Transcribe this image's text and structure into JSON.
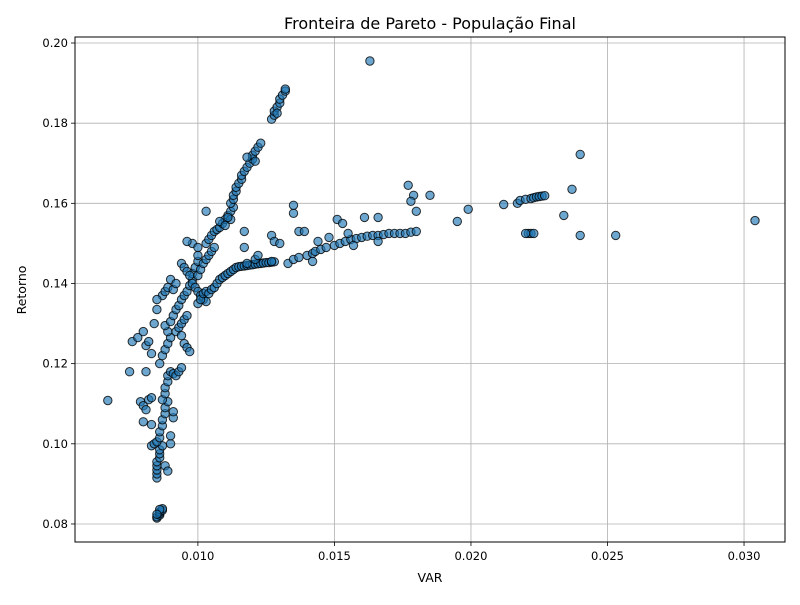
{
  "chart_data": {
    "type": "scatter",
    "title": "Fronteira de Pareto - População Final",
    "xlabel": "VAR",
    "ylabel": "Retorno",
    "xlim": [
      0.0055,
      0.0315
    ],
    "ylim": [
      0.0755,
      0.2015
    ],
    "xticks": [
      0.01,
      0.015,
      0.02,
      0.025,
      0.03
    ],
    "xtick_labels": [
      "0.010",
      "0.015",
      "0.020",
      "0.025",
      "0.030"
    ],
    "yticks": [
      0.08,
      0.1,
      0.12,
      0.14,
      0.16,
      0.18,
      0.2
    ],
    "ytick_labels": [
      "0.08",
      "0.10",
      "0.12",
      "0.14",
      "0.16",
      "0.18",
      "0.20"
    ],
    "grid": true,
    "marker_color": "#1f77b4",
    "marker_edge_color": "#000000",
    "marker_alpha": 0.65,
    "points": [
      [
        0.0085,
        0.0815
      ],
      [
        0.0085,
        0.0818
      ],
      [
        0.0086,
        0.0822
      ],
      [
        0.0086,
        0.0826
      ],
      [
        0.0086,
        0.083
      ],
      [
        0.0087,
        0.0834
      ],
      [
        0.0087,
        0.0838
      ],
      [
        0.0086,
        0.0836
      ],
      [
        0.0085,
        0.0824
      ],
      [
        0.0085,
        0.0915
      ],
      [
        0.0085,
        0.0925
      ],
      [
        0.0085,
        0.0935
      ],
      [
        0.0085,
        0.0945
      ],
      [
        0.0085,
        0.0955
      ],
      [
        0.0086,
        0.0965
      ],
      [
        0.0086,
        0.0975
      ],
      [
        0.0086,
        0.0985
      ],
      [
        0.0087,
        0.0995
      ],
      [
        0.0083,
        0.0995
      ],
      [
        0.0084,
        0.1
      ],
      [
        0.0085,
        0.1005
      ],
      [
        0.0086,
        0.1015
      ],
      [
        0.0086,
        0.103
      ],
      [
        0.0087,
        0.1045
      ],
      [
        0.0087,
        0.106
      ],
      [
        0.0088,
        0.1075
      ],
      [
        0.0088,
        0.109
      ],
      [
        0.0089,
        0.1105
      ],
      [
        0.0088,
        0.0945
      ],
      [
        0.0089,
        0.0932
      ],
      [
        0.009,
        0.1
      ],
      [
        0.009,
        0.102
      ],
      [
        0.0091,
        0.1065
      ],
      [
        0.0091,
        0.108
      ],
      [
        0.0087,
        0.111
      ],
      [
        0.0088,
        0.1125
      ],
      [
        0.0088,
        0.114
      ],
      [
        0.0089,
        0.1155
      ],
      [
        0.0089,
        0.117
      ],
      [
        0.009,
        0.118
      ],
      [
        0.0091,
        0.1175
      ],
      [
        0.0092,
        0.117
      ],
      [
        0.0093,
        0.118
      ],
      [
        0.0094,
        0.119
      ],
      [
        0.0086,
        0.12
      ],
      [
        0.0087,
        0.122
      ],
      [
        0.0088,
        0.1235
      ],
      [
        0.0089,
        0.125
      ],
      [
        0.009,
        0.1265
      ],
      [
        0.0089,
        0.128
      ],
      [
        0.0088,
        0.1295
      ],
      [
        0.009,
        0.1305
      ],
      [
        0.0091,
        0.132
      ],
      [
        0.0092,
        0.1335
      ],
      [
        0.0093,
        0.1345
      ],
      [
        0.0094,
        0.136
      ],
      [
        0.0095,
        0.137
      ],
      [
        0.0096,
        0.138
      ],
      [
        0.0097,
        0.1395
      ],
      [
        0.0098,
        0.141
      ],
      [
        0.0098,
        0.1425
      ],
      [
        0.0099,
        0.144
      ],
      [
        0.01,
        0.1455
      ],
      [
        0.01,
        0.147
      ],
      [
        0.0094,
        0.145
      ],
      [
        0.0095,
        0.144
      ],
      [
        0.0096,
        0.143
      ],
      [
        0.0097,
        0.142
      ],
      [
        0.0098,
        0.14
      ],
      [
        0.0099,
        0.139
      ],
      [
        0.01,
        0.138
      ],
      [
        0.0101,
        0.137
      ],
      [
        0.0102,
        0.136
      ],
      [
        0.0103,
        0.1355
      ],
      [
        0.0092,
        0.128
      ],
      [
        0.0093,
        0.129
      ],
      [
        0.0094,
        0.13
      ],
      [
        0.0095,
        0.131
      ],
      [
        0.0096,
        0.132
      ],
      [
        0.0094,
        0.127
      ],
      [
        0.0095,
        0.125
      ],
      [
        0.0096,
        0.124
      ],
      [
        0.0097,
        0.123
      ],
      [
        0.0087,
        0.137
      ],
      [
        0.0088,
        0.138
      ],
      [
        0.0089,
        0.139
      ],
      [
        0.009,
        0.141
      ],
      [
        0.0091,
        0.1385
      ],
      [
        0.0092,
        0.14
      ],
      [
        0.0076,
        0.1255
      ],
      [
        0.0078,
        0.1265
      ],
      [
        0.008,
        0.128
      ],
      [
        0.0081,
        0.1245
      ],
      [
        0.0082,
        0.1255
      ],
      [
        0.0083,
        0.1225
      ],
      [
        0.0084,
        0.13
      ],
      [
        0.0085,
        0.1335
      ],
      [
        0.0085,
        0.136
      ],
      [
        0.0075,
        0.118
      ],
      [
        0.0081,
        0.118
      ],
      [
        0.0082,
        0.111
      ],
      [
        0.0083,
        0.1115
      ],
      [
        0.0079,
        0.1105
      ],
      [
        0.008,
        0.1095
      ],
      [
        0.0081,
        0.1085
      ],
      [
        0.008,
        0.1055
      ],
      [
        0.0083,
        0.1048
      ],
      [
        0.0067,
        0.1108
      ],
      [
        0.0098,
        0.15
      ],
      [
        0.0096,
        0.1505
      ],
      [
        0.01,
        0.149
      ],
      [
        0.01,
        0.135
      ],
      [
        0.0101,
        0.136
      ],
      [
        0.0102,
        0.1375
      ],
      [
        0.0103,
        0.138
      ],
      [
        0.0104,
        0.1375
      ],
      [
        0.0105,
        0.1385
      ],
      [
        0.0106,
        0.139
      ],
      [
        0.0107,
        0.14
      ],
      [
        0.0108,
        0.141
      ],
      [
        0.0109,
        0.1415
      ],
      [
        0.011,
        0.142
      ],
      [
        0.0111,
        0.1425
      ],
      [
        0.0112,
        0.143
      ],
      [
        0.0113,
        0.1435
      ],
      [
        0.0114,
        0.144
      ],
      [
        0.0115,
        0.1442
      ],
      [
        0.0116,
        0.1443
      ],
      [
        0.0117,
        0.1444
      ],
      [
        0.0118,
        0.1445
      ],
      [
        0.0119,
        0.1446
      ],
      [
        0.012,
        0.1447
      ],
      [
        0.0121,
        0.1448
      ],
      [
        0.0122,
        0.1449
      ],
      [
        0.0123,
        0.145
      ],
      [
        0.0124,
        0.1451
      ],
      [
        0.0125,
        0.1452
      ],
      [
        0.0126,
        0.1452
      ],
      [
        0.0127,
        0.1453
      ],
      [
        0.0128,
        0.1454
      ],
      [
        0.01,
        0.142
      ],
      [
        0.0101,
        0.1435
      ],
      [
        0.0102,
        0.145
      ],
      [
        0.0103,
        0.146
      ],
      [
        0.0104,
        0.147
      ],
      [
        0.0105,
        0.148
      ],
      [
        0.0106,
        0.149
      ],
      [
        0.0103,
        0.15
      ],
      [
        0.0104,
        0.151
      ],
      [
        0.0105,
        0.152
      ],
      [
        0.0106,
        0.153
      ],
      [
        0.0107,
        0.1535
      ],
      [
        0.0108,
        0.154
      ],
      [
        0.0109,
        0.155
      ],
      [
        0.011,
        0.156
      ],
      [
        0.0111,
        0.157
      ],
      [
        0.0112,
        0.158
      ],
      [
        0.0113,
        0.159
      ],
      [
        0.0112,
        0.16
      ],
      [
        0.0113,
        0.161
      ],
      [
        0.0113,
        0.162
      ],
      [
        0.0114,
        0.163
      ],
      [
        0.0114,
        0.164
      ],
      [
        0.0115,
        0.165
      ],
      [
        0.0116,
        0.166
      ],
      [
        0.0116,
        0.167
      ],
      [
        0.0117,
        0.168
      ],
      [
        0.0118,
        0.169
      ],
      [
        0.0119,
        0.17
      ],
      [
        0.012,
        0.171
      ],
      [
        0.012,
        0.172
      ],
      [
        0.0121,
        0.173
      ],
      [
        0.0122,
        0.174
      ],
      [
        0.0123,
        0.175
      ],
      [
        0.0118,
        0.1715
      ],
      [
        0.0121,
        0.1705
      ],
      [
        0.0127,
        0.181
      ],
      [
        0.0128,
        0.182
      ],
      [
        0.0128,
        0.183
      ],
      [
        0.0129,
        0.184
      ],
      [
        0.013,
        0.185
      ],
      [
        0.013,
        0.186
      ],
      [
        0.0131,
        0.187
      ],
      [
        0.0132,
        0.188
      ],
      [
        0.0132,
        0.1885
      ],
      [
        0.0129,
        0.1825
      ],
      [
        0.0103,
        0.158
      ],
      [
        0.0108,
        0.1555
      ],
      [
        0.011,
        0.1545
      ],
      [
        0.0112,
        0.156
      ],
      [
        0.0111,
        0.1565
      ],
      [
        0.0117,
        0.153
      ],
      [
        0.0117,
        0.149
      ],
      [
        0.0118,
        0.145
      ],
      [
        0.0121,
        0.146
      ],
      [
        0.0122,
        0.147
      ],
      [
        0.0127,
        0.152
      ],
      [
        0.0128,
        0.1505
      ],
      [
        0.013,
        0.15
      ],
      [
        0.0127,
        0.1455
      ],
      [
        0.0133,
        0.145
      ],
      [
        0.0135,
        0.146
      ],
      [
        0.0137,
        0.1465
      ],
      [
        0.014,
        0.147
      ],
      [
        0.0142,
        0.1475
      ],
      [
        0.0143,
        0.148
      ],
      [
        0.0145,
        0.1485
      ],
      [
        0.0147,
        0.149
      ],
      [
        0.015,
        0.1495
      ],
      [
        0.0152,
        0.15
      ],
      [
        0.0154,
        0.1505
      ],
      [
        0.0156,
        0.151
      ],
      [
        0.0158,
        0.1512
      ],
      [
        0.016,
        0.1515
      ],
      [
        0.0162,
        0.1518
      ],
      [
        0.0164,
        0.152
      ],
      [
        0.0166,
        0.152
      ],
      [
        0.0168,
        0.1522
      ],
      [
        0.017,
        0.1525
      ],
      [
        0.0172,
        0.1525
      ],
      [
        0.0174,
        0.1525
      ],
      [
        0.0176,
        0.1525
      ],
      [
        0.0178,
        0.1528
      ],
      [
        0.018,
        0.153
      ],
      [
        0.0135,
        0.1575
      ],
      [
        0.0135,
        0.1595
      ],
      [
        0.0137,
        0.153
      ],
      [
        0.0139,
        0.153
      ],
      [
        0.0142,
        0.1455
      ],
      [
        0.0144,
        0.1505
      ],
      [
        0.0148,
        0.1515
      ],
      [
        0.0151,
        0.156
      ],
      [
        0.0153,
        0.155
      ],
      [
        0.0155,
        0.1525
      ],
      [
        0.0157,
        0.1495
      ],
      [
        0.0161,
        0.1565
      ],
      [
        0.0166,
        0.1565
      ],
      [
        0.0166,
        0.1505
      ],
      [
        0.0177,
        0.1645
      ],
      [
        0.0179,
        0.162
      ],
      [
        0.018,
        0.158
      ],
      [
        0.0178,
        0.1605
      ],
      [
        0.0185,
        0.162
      ],
      [
        0.0195,
        0.1555
      ],
      [
        0.0199,
        0.1585
      ],
      [
        0.0212,
        0.1597
      ],
      [
        0.0217,
        0.16
      ],
      [
        0.0218,
        0.1607
      ],
      [
        0.022,
        0.161
      ],
      [
        0.0222,
        0.1612
      ],
      [
        0.0223,
        0.1614
      ],
      [
        0.0224,
        0.1616
      ],
      [
        0.0225,
        0.1617
      ],
      [
        0.0226,
        0.1618
      ],
      [
        0.0227,
        0.1619
      ],
      [
        0.0221,
        0.1525
      ],
      [
        0.0222,
        0.1525
      ],
      [
        0.0223,
        0.1525
      ],
      [
        0.022,
        0.1525
      ],
      [
        0.0234,
        0.157
      ],
      [
        0.0237,
        0.1635
      ],
      [
        0.024,
        0.1722
      ],
      [
        0.024,
        0.152
      ],
      [
        0.0253,
        0.152
      ],
      [
        0.0304,
        0.1557
      ],
      [
        0.0163,
        0.1955
      ]
    ]
  }
}
